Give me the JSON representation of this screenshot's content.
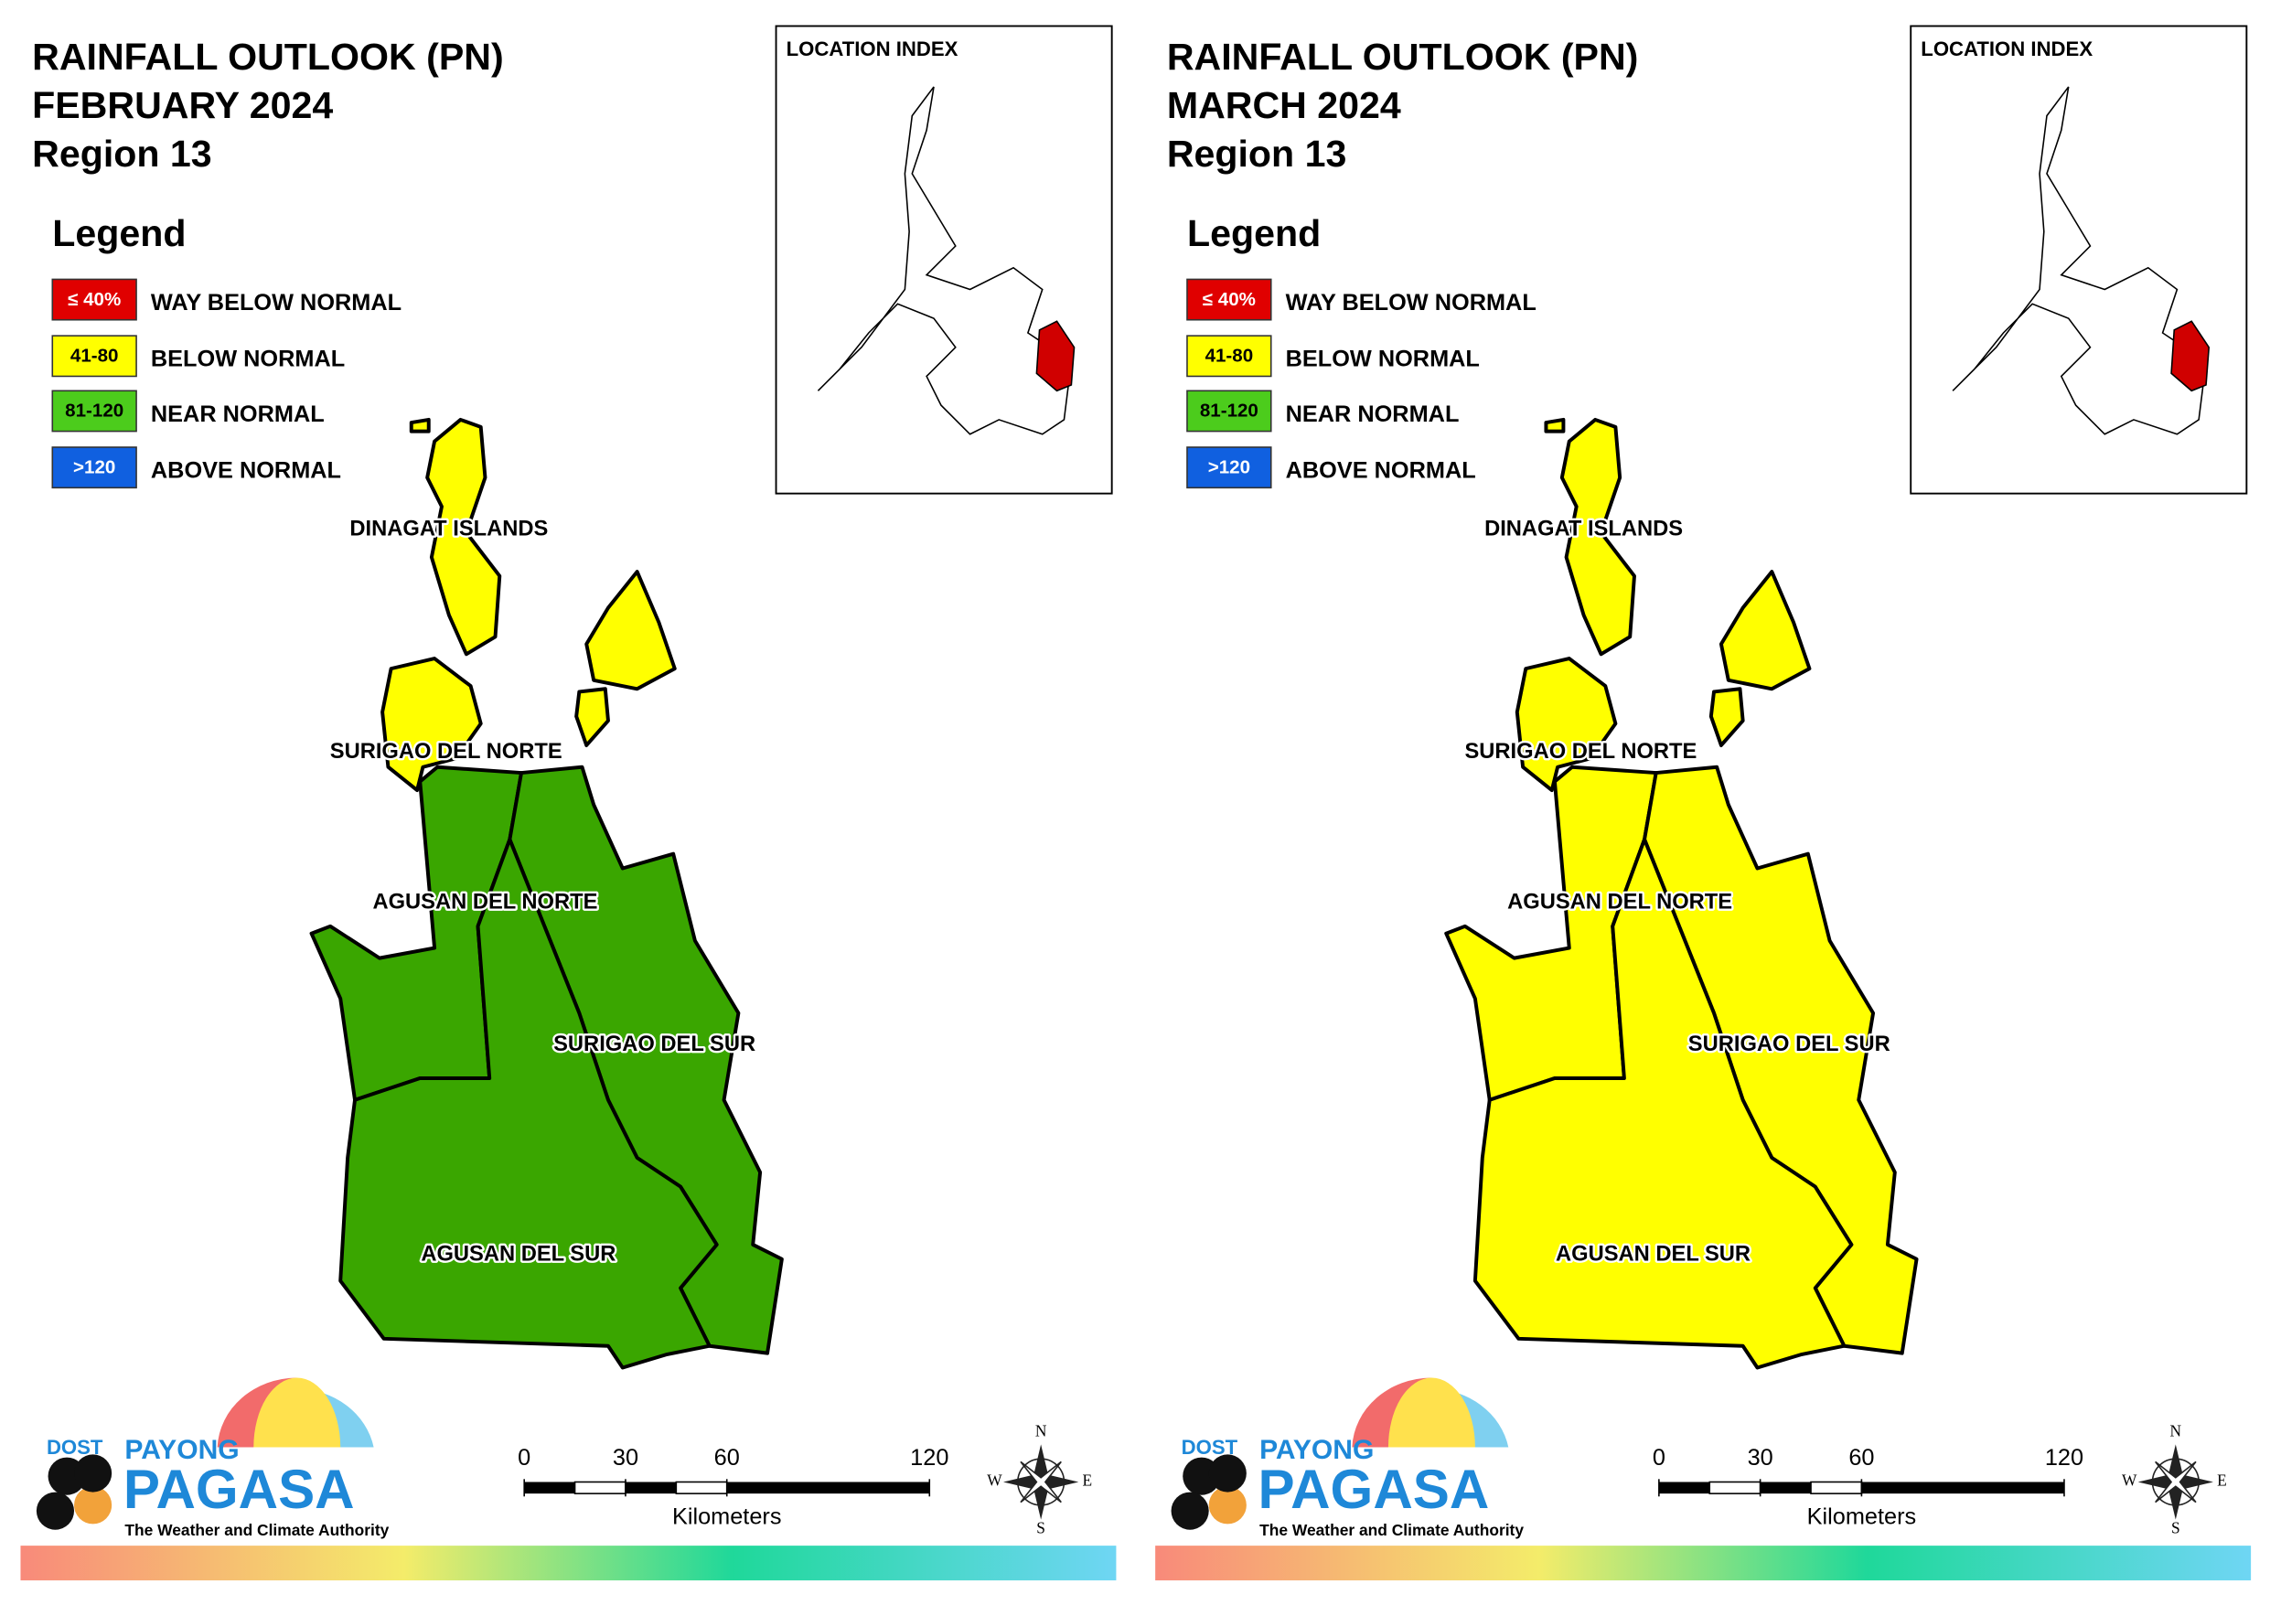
{
  "panels": [
    {
      "title": [
        "RAINFALL OUTLOOK (PN)",
        "FEBRUARY 2024",
        "Region 13"
      ],
      "legend_title": "Legend",
      "legend": [
        {
          "key": "≤ 40%",
          "label": "WAY BELOW NORMAL",
          "color": "#e00000"
        },
        {
          "key": "41-80",
          "label": "BELOW NORMAL",
          "color": "#ffff00"
        },
        {
          "key": "81-120",
          "label": "NEAR NORMAL",
          "color": "#4ccc1c"
        },
        {
          "key": ">120",
          "label": "ABOVE NORMAL",
          "color": "#1060e0"
        }
      ],
      "location_index": "LOCATION INDEX",
      "provinces": [
        {
          "name": "DINAGAT ISLANDS",
          "color": "#ffff00"
        },
        {
          "name": "SURIGAO DEL NORTE",
          "color": "#ffff00"
        },
        {
          "name": "AGUSAN DEL NORTE",
          "color": "#3aa600"
        },
        {
          "name": "SURIGAO DEL SUR",
          "color": "#3aa600"
        },
        {
          "name": "AGUSAN DEL SUR",
          "color": "#3aa600"
        }
      ]
    },
    {
      "title": [
        "RAINFALL OUTLOOK (PN)",
        "MARCH 2024",
        "Region 13"
      ],
      "legend_title": "Legend",
      "legend": [
        {
          "key": "≤ 40%",
          "label": "WAY BELOW NORMAL",
          "color": "#e00000"
        },
        {
          "key": "41-80",
          "label": "BELOW NORMAL",
          "color": "#ffff00"
        },
        {
          "key": "81-120",
          "label": "NEAR NORMAL",
          "color": "#4ccc1c"
        },
        {
          "key": ">120",
          "label": "ABOVE NORMAL",
          "color": "#1060e0"
        }
      ],
      "location_index": "LOCATION INDEX",
      "provinces": [
        {
          "name": "DINAGAT ISLANDS",
          "color": "#ffff00"
        },
        {
          "name": "SURIGAO DEL NORTE",
          "color": "#ffff00"
        },
        {
          "name": "AGUSAN DEL NORTE",
          "color": "#ffff00"
        },
        {
          "name": "SURIGAO DEL SUR",
          "color": "#ffff00"
        },
        {
          "name": "AGUSAN DEL SUR",
          "color": "#ffff00"
        }
      ]
    }
  ],
  "footer": {
    "scale_ticks": [
      0,
      30,
      60,
      120
    ],
    "scale_unit": "Kilometers",
    "compass": [
      "N",
      "E",
      "S",
      "W"
    ],
    "logo": {
      "dost": "DOST",
      "payong": "PAYONG",
      "pagasa": "PAGASA",
      "tagline": "The Weather and Climate Authority"
    }
  }
}
